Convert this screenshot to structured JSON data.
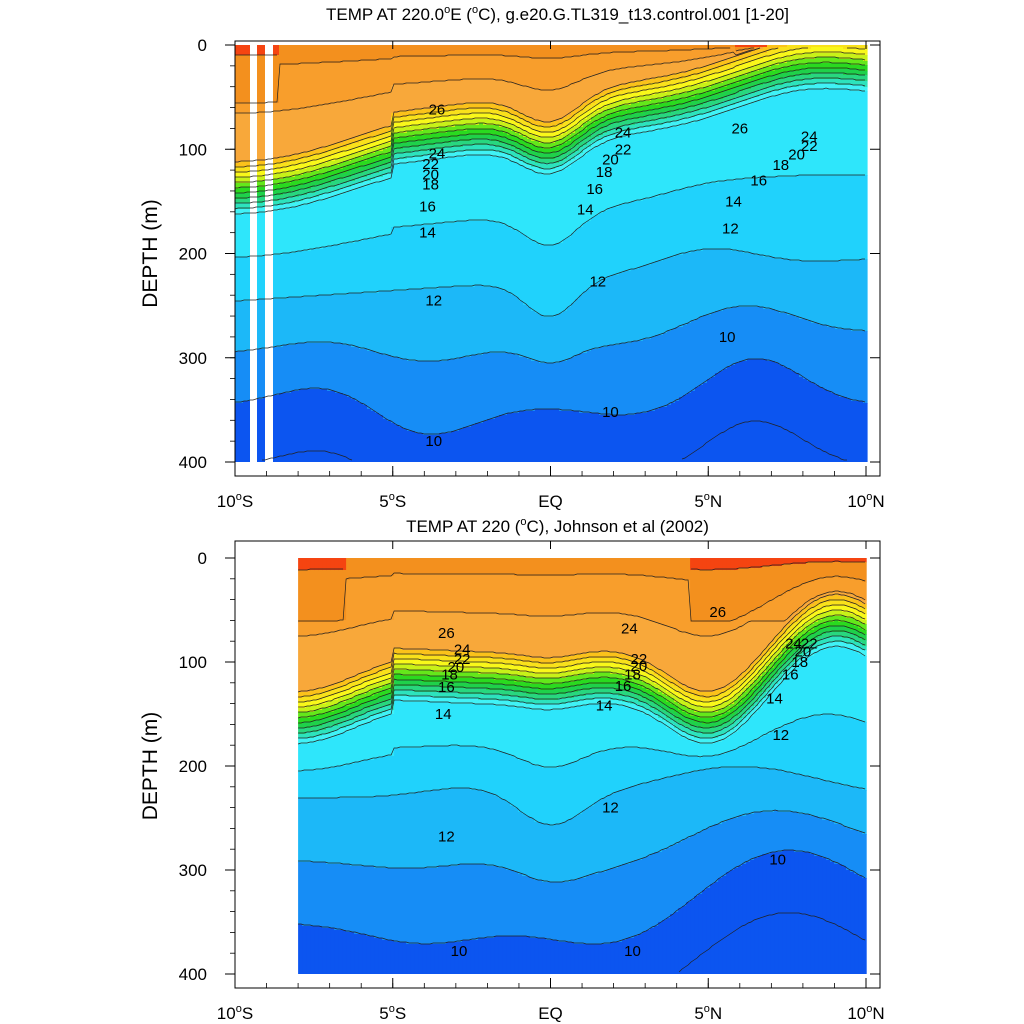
{
  "chart_data": [
    {
      "type": "contour",
      "title_parts": [
        "TEMP AT 220.0",
        "o",
        "E (",
        "o",
        "C), g.e20.G.TL319_t13.control.001 [1-20]"
      ],
      "ylabel": "DEPTH (m)",
      "xlim": [
        -10,
        10
      ],
      "ylim": [
        0,
        400
      ],
      "y_inverted": true,
      "y_ticks": [
        {
          "value": 0,
          "label": "0"
        },
        {
          "value": 100,
          "label": "100"
        },
        {
          "value": 200,
          "label": "200"
        },
        {
          "value": 300,
          "label": "300"
        },
        {
          "value": 400,
          "label": "400"
        }
      ],
      "x_ticks": [
        {
          "value": -10,
          "parts": [
            "10",
            "o",
            "S"
          ]
        },
        {
          "value": -5,
          "parts": [
            "5",
            "o",
            "S"
          ]
        },
        {
          "value": 0,
          "parts": [
            "EQ"
          ]
        },
        {
          "value": 5,
          "parts": [
            "5",
            "o",
            "N"
          ]
        },
        {
          "value": 10,
          "parts": [
            "10",
            "o",
            "N"
          ]
        }
      ],
      "contour_interval": 1,
      "contour_labels": [
        {
          "text": "26",
          "x": -3.6,
          "y": 62
        },
        {
          "text": "24",
          "x": 2.3,
          "y": 84
        },
        {
          "text": "26",
          "x": 6.0,
          "y": 80
        },
        {
          "text": "24",
          "x": 8.2,
          "y": 88
        },
        {
          "text": "22",
          "x": 8.2,
          "y": 97
        },
        {
          "text": "20",
          "x": 7.8,
          "y": 105
        },
        {
          "text": "18",
          "x": 7.3,
          "y": 115
        },
        {
          "text": "16",
          "x": 6.6,
          "y": 130
        },
        {
          "text": "14",
          "x": 5.8,
          "y": 150
        },
        {
          "text": "12",
          "x": 5.7,
          "y": 176
        },
        {
          "text": "22",
          "x": 2.3,
          "y": 100
        },
        {
          "text": "20",
          "x": 1.9,
          "y": 110
        },
        {
          "text": "18",
          "x": 1.7,
          "y": 122
        },
        {
          "text": "16",
          "x": 1.4,
          "y": 138
        },
        {
          "text": "14",
          "x": 1.1,
          "y": 158
        },
        {
          "text": "24",
          "x": -3.6,
          "y": 104
        },
        {
          "text": "22",
          "x": -3.8,
          "y": 114
        },
        {
          "text": "20",
          "x": -3.8,
          "y": 124
        },
        {
          "text": "18",
          "x": -3.8,
          "y": 134
        },
        {
          "text": "16",
          "x": -3.9,
          "y": 155
        },
        {
          "text": "14",
          "x": -3.9,
          "y": 180
        },
        {
          "text": "12",
          "x": -3.7,
          "y": 245
        },
        {
          "text": "12",
          "x": 1.5,
          "y": 227
        },
        {
          "text": "10",
          "x": 5.6,
          "y": 280
        },
        {
          "text": "10",
          "x": 1.9,
          "y": 352
        },
        {
          "text": "10",
          "x": -3.7,
          "y": 380
        }
      ]
    },
    {
      "type": "contour",
      "title_parts": [
        "TEMP AT 220 (",
        "o",
        "C), Johnson et al (2002)"
      ],
      "ylabel": "DEPTH (m)",
      "xlim": [
        -10,
        10
      ],
      "ylim": [
        0,
        400
      ],
      "y_inverted": true,
      "y_ticks": [
        {
          "value": 0,
          "label": "0"
        },
        {
          "value": 100,
          "label": "100"
        },
        {
          "value": 200,
          "label": "200"
        },
        {
          "value": 300,
          "label": "300"
        },
        {
          "value": 400,
          "label": "400"
        }
      ],
      "x_ticks": [
        {
          "value": -10,
          "parts": [
            "10",
            "o",
            "S"
          ]
        },
        {
          "value": -5,
          "parts": [
            "5",
            "o",
            "S"
          ]
        },
        {
          "value": 0,
          "parts": [
            "EQ"
          ]
        },
        {
          "value": 5,
          "parts": [
            "5",
            "o",
            "N"
          ]
        },
        {
          "value": 10,
          "parts": [
            "10",
            "o",
            "N"
          ]
        }
      ],
      "data_x_start": -8,
      "contour_interval": 1,
      "contour_labels": [
        {
          "text": "26",
          "x": -3.3,
          "y": 72
        },
        {
          "text": "24",
          "x": 2.5,
          "y": 68
        },
        {
          "text": "26",
          "x": 5.3,
          "y": 52
        },
        {
          "text": "24",
          "x": -2.8,
          "y": 88
        },
        {
          "text": "22",
          "x": -2.8,
          "y": 97
        },
        {
          "text": "20",
          "x": -3.0,
          "y": 105
        },
        {
          "text": "18",
          "x": -3.2,
          "y": 112
        },
        {
          "text": "16",
          "x": -3.3,
          "y": 124
        },
        {
          "text": "14",
          "x": -3.4,
          "y": 150
        },
        {
          "text": "22",
          "x": 2.8,
          "y": 97
        },
        {
          "text": "20",
          "x": 2.8,
          "y": 104
        },
        {
          "text": "18",
          "x": 2.6,
          "y": 112
        },
        {
          "text": "16",
          "x": 2.3,
          "y": 123
        },
        {
          "text": "14",
          "x": 1.7,
          "y": 142
        },
        {
          "text": "12",
          "x": 1.9,
          "y": 240
        },
        {
          "text": "12",
          "x": -3.3,
          "y": 268
        },
        {
          "text": "24",
          "x": 7.7,
          "y": 82
        },
        {
          "text": "22",
          "x": 8.2,
          "y": 82
        },
        {
          "text": "20",
          "x": 8.0,
          "y": 90
        },
        {
          "text": "18",
          "x": 7.9,
          "y": 100
        },
        {
          "text": "16",
          "x": 7.6,
          "y": 112
        },
        {
          "text": "14",
          "x": 7.1,
          "y": 135
        },
        {
          "text": "12",
          "x": 7.3,
          "y": 170
        },
        {
          "text": "10",
          "x": 7.2,
          "y": 290
        },
        {
          "text": "10",
          "x": 2.6,
          "y": 378
        },
        {
          "text": "10",
          "x": -2.9,
          "y": 378
        }
      ]
    }
  ]
}
